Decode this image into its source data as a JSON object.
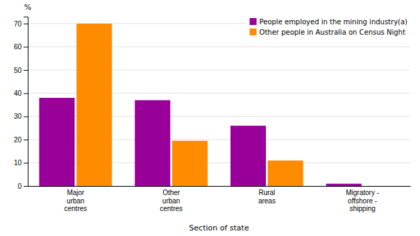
{
  "chart_data": {
    "type": "bar",
    "categories": [
      "Major\nurban\ncentres",
      "Other\nurban\ncentres",
      "Rural\nareas",
      "Migratory -\noffshore -\nshipping"
    ],
    "series": [
      {
        "name": "People employed in the mining industry(a)",
        "color": "#990099",
        "values": [
          38,
          37,
          26,
          1
        ]
      },
      {
        "name": "Other people in Australia on Census Night",
        "color": "#FF8C00",
        "values": [
          70,
          19.5,
          11,
          0
        ]
      }
    ],
    "ylim": [
      0,
      73
    ],
    "yticks": [
      0,
      10,
      20,
      30,
      40,
      50,
      60,
      70
    ],
    "ylabel": "%",
    "xlabel": "Section of state",
    "grid": true,
    "legend": "upper right"
  }
}
